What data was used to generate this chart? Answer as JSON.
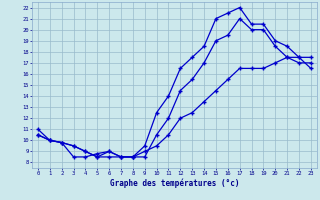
{
  "xlabel": "Graphe des températures (°c)",
  "bg_color": "#cce8ec",
  "line_color": "#0000cc",
  "grid_color": "#99bbcc",
  "xlim": [
    -0.5,
    23.5
  ],
  "ylim": [
    7.5,
    22.5
  ],
  "xticks": [
    0,
    1,
    2,
    3,
    4,
    5,
    6,
    7,
    8,
    9,
    10,
    11,
    12,
    13,
    14,
    15,
    16,
    17,
    18,
    19,
    20,
    21,
    22,
    23
  ],
  "yticks": [
    8,
    9,
    10,
    11,
    12,
    13,
    14,
    15,
    16,
    17,
    18,
    19,
    20,
    21,
    22
  ],
  "line1_x": [
    0,
    1,
    2,
    3,
    4,
    5,
    6,
    7,
    8,
    9,
    10,
    11,
    12,
    13,
    14,
    15,
    16,
    17,
    18,
    19,
    20,
    21,
    22,
    23
  ],
  "line1_y": [
    10.5,
    10.0,
    9.8,
    8.5,
    8.5,
    8.8,
    9.0,
    8.5,
    8.5,
    9.0,
    9.5,
    10.5,
    12.0,
    12.5,
    13.5,
    14.5,
    15.5,
    16.5,
    16.5,
    16.5,
    17.0,
    17.5,
    17.5,
    16.5
  ],
  "line2_x": [
    0,
    1,
    2,
    3,
    4,
    5,
    6,
    7,
    8,
    9,
    10,
    11,
    12,
    13,
    14,
    15,
    16,
    17,
    18,
    19,
    20,
    21,
    22,
    23
  ],
  "line2_y": [
    10.5,
    10.0,
    9.8,
    9.5,
    9.0,
    8.5,
    8.5,
    8.5,
    8.5,
    8.5,
    10.5,
    12.0,
    14.5,
    15.5,
    17.0,
    19.0,
    19.5,
    21.0,
    20.0,
    20.0,
    18.5,
    17.5,
    17.0,
    17.0
  ],
  "line3_x": [
    0,
    1,
    2,
    3,
    4,
    5,
    6,
    7,
    8,
    9,
    10,
    11,
    12,
    13,
    14,
    15,
    16,
    17,
    18,
    19,
    20,
    21,
    22,
    23
  ],
  "line3_y": [
    11.0,
    10.0,
    9.8,
    9.5,
    9.0,
    8.5,
    9.0,
    8.5,
    8.5,
    9.5,
    12.5,
    14.0,
    16.5,
    17.5,
    18.5,
    21.0,
    21.5,
    22.0,
    20.5,
    20.5,
    19.0,
    18.5,
    17.5,
    17.5
  ]
}
